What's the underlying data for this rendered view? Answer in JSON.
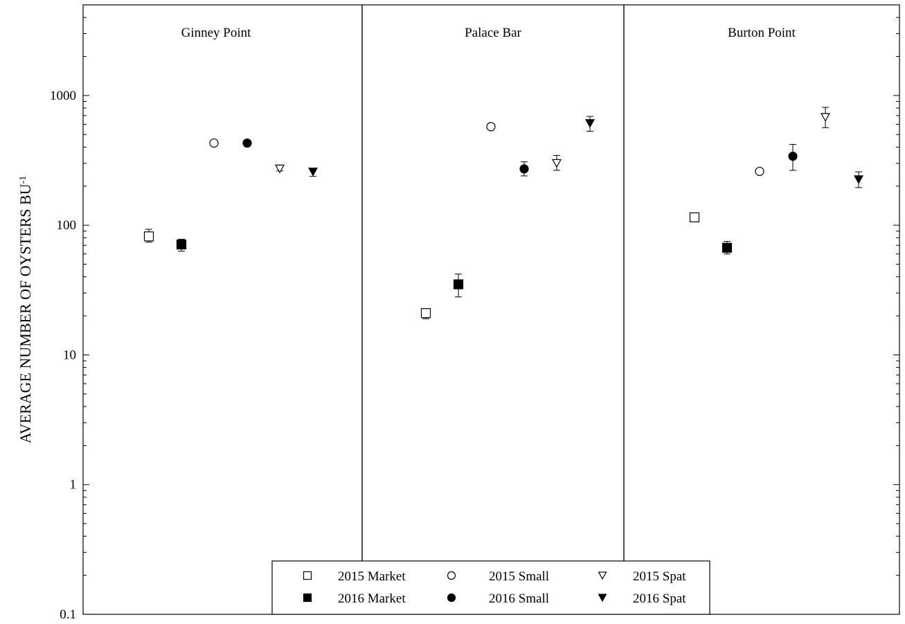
{
  "chart_data": {
    "type": "scatter",
    "title": "",
    "xlabel": "",
    "ylabel": "AVERAGE NUMBER OF OYSTERS BU",
    "ylabel_superscript": "-1",
    "yscale": "log",
    "ylim": [
      0.1,
      5000
    ],
    "yticks": [
      {
        "value": 0.1,
        "label": "0.1"
      },
      {
        "value": 1,
        "label": "1"
      },
      {
        "value": 10,
        "label": "10"
      },
      {
        "value": 100,
        "label": "100"
      },
      {
        "value": 1000,
        "label": "1000"
      }
    ],
    "grid": false,
    "legend_position": "bottom-center",
    "panels": [
      {
        "label": "Ginney Point"
      },
      {
        "label": "Palace Bar"
      },
      {
        "label": "Burton Point"
      }
    ],
    "series": [
      {
        "name": "2015 Market",
        "marker": "square",
        "filled": false,
        "points": [
          {
            "panel": 0,
            "y": 82,
            "err_low": 74,
            "err_high": 93
          },
          {
            "panel": 1,
            "y": 21,
            "err_low": 19,
            "err_high": 22
          },
          {
            "panel": 2,
            "y": 115,
            "err_low": 115,
            "err_high": 115
          }
        ]
      },
      {
        "name": "2016 Market",
        "marker": "square",
        "filled": true,
        "points": [
          {
            "panel": 0,
            "y": 71,
            "err_low": 63,
            "err_high": 78
          },
          {
            "panel": 1,
            "y": 35,
            "err_low": 28,
            "err_high": 42
          },
          {
            "panel": 2,
            "y": 67,
            "err_low": 60,
            "err_high": 75
          }
        ]
      },
      {
        "name": "2015 Small",
        "marker": "circle",
        "filled": false,
        "points": [
          {
            "panel": 0,
            "y": 430,
            "err_low": 430,
            "err_high": 430
          },
          {
            "panel": 1,
            "y": 575,
            "err_low": 575,
            "err_high": 575
          },
          {
            "panel": 2,
            "y": 260,
            "err_low": 252,
            "err_high": 268
          }
        ]
      },
      {
        "name": "2016 Small",
        "marker": "circle",
        "filled": true,
        "points": [
          {
            "panel": 0,
            "y": 430,
            "err_low": 430,
            "err_high": 430
          },
          {
            "panel": 1,
            "y": 272,
            "err_low": 240,
            "err_high": 308
          },
          {
            "panel": 2,
            "y": 340,
            "err_low": 265,
            "err_high": 420
          }
        ]
      },
      {
        "name": "2015 Spat",
        "marker": "triangle-down",
        "filled": false,
        "points": [
          {
            "panel": 0,
            "y": 272,
            "err_low": 262,
            "err_high": 282
          },
          {
            "panel": 1,
            "y": 300,
            "err_low": 265,
            "err_high": 345
          },
          {
            "panel": 2,
            "y": 680,
            "err_low": 565,
            "err_high": 810
          }
        ]
      },
      {
        "name": "2016 Spat",
        "marker": "triangle-down",
        "filled": true,
        "points": [
          {
            "panel": 0,
            "y": 258,
            "err_low": 238,
            "err_high": 275
          },
          {
            "panel": 1,
            "y": 610,
            "err_low": 530,
            "err_high": 690
          },
          {
            "panel": 2,
            "y": 225,
            "err_low": 195,
            "err_high": 258
          }
        ]
      }
    ]
  }
}
